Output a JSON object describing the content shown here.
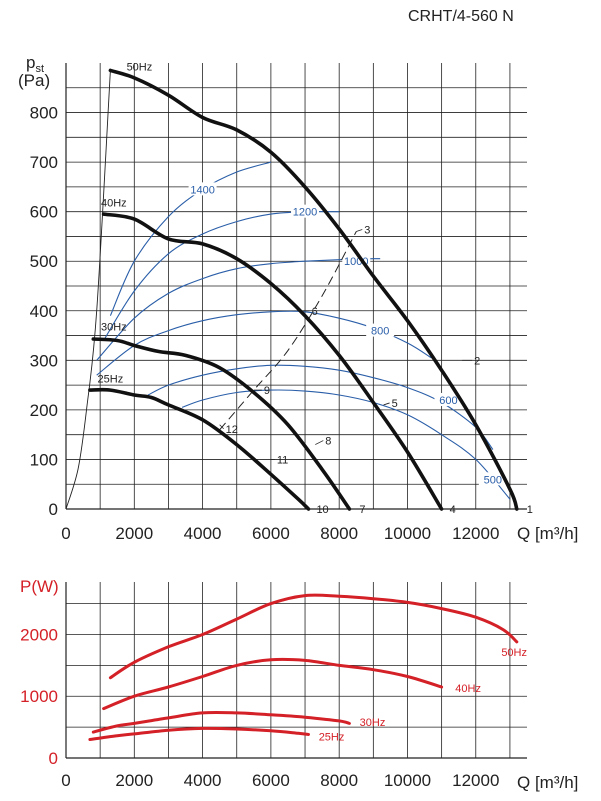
{
  "title": "CRHT/4-560 N",
  "chart_data": [
    {
      "type": "line",
      "name": "pressure-curves",
      "ylabel_main": "p",
      "ylabel_sub": "st",
      "ylabel_unit": "(Pa)",
      "xlabel": "Q [m³/h]",
      "xlim": [
        0,
        13500
      ],
      "ylim": [
        0,
        900
      ],
      "xticks": [
        0,
        2000,
        4000,
        6000,
        8000,
        10000,
        12000
      ],
      "yticks": [
        0,
        100,
        200,
        300,
        400,
        500,
        600,
        700,
        800
      ],
      "grid": true,
      "series": [
        {
          "name": "50Hz",
          "x": [
            1300,
            2000,
            3000,
            4000,
            5000,
            6000,
            7000,
            8000,
            9000,
            10000,
            11000,
            12000,
            13000,
            13200
          ],
          "y": [
            885,
            870,
            835,
            790,
            765,
            720,
            650,
            565,
            470,
            380,
            280,
            170,
            40,
            0
          ]
        },
        {
          "name": "40Hz",
          "x": [
            1100,
            2000,
            3000,
            4000,
            5000,
            6000,
            7000,
            8000,
            9000,
            10000,
            11000
          ],
          "y": [
            595,
            585,
            545,
            535,
            505,
            455,
            390,
            310,
            215,
            115,
            0
          ]
        },
        {
          "name": "30Hz",
          "x": [
            800,
            1500,
            2000,
            2700,
            3500,
            4500,
            5500,
            6500,
            7500,
            8300
          ],
          "y": [
            343,
            340,
            330,
            318,
            310,
            285,
            235,
            170,
            80,
            0
          ]
        },
        {
          "name": "25Hz",
          "x": [
            700,
            1300,
            2000,
            2500,
            3000,
            4000,
            5000,
            6000,
            6800,
            7100
          ],
          "y": [
            240,
            240,
            230,
            225,
            210,
            180,
            130,
            70,
            20,
            0
          ]
        }
      ],
      "speed_labels": [
        "50Hz",
        "40Hz",
        "30Hz",
        "25Hz"
      ],
      "iso_power_curves": [
        {
          "label": "1400",
          "x": [
            1300,
            2000,
            3000,
            4000,
            5000,
            6000
          ],
          "y": [
            390,
            500,
            590,
            645,
            680,
            700
          ]
        },
        {
          "label": "1200",
          "x": [
            1100,
            2000,
            3000,
            4000,
            5000,
            6000,
            7000,
            8000
          ],
          "y": [
            340,
            440,
            515,
            555,
            580,
            595,
            600,
            600
          ]
        },
        {
          "label": "1000",
          "x": [
            900,
            2000,
            3000,
            4000,
            5000,
            6000,
            7000,
            8000,
            9000,
            9200
          ],
          "y": [
            300,
            385,
            435,
            465,
            485,
            495,
            500,
            503,
            505,
            505
          ]
        },
        {
          "label": "800",
          "x": [
            900,
            2000,
            3000,
            4000,
            5000,
            6000,
            7000,
            8000,
            9000,
            10000,
            10700
          ],
          "y": [
            270,
            330,
            360,
            380,
            392,
            398,
            398,
            385,
            365,
            335,
            305
          ]
        },
        {
          "label": "600",
          "x": [
            2400,
            3000,
            4000,
            5000,
            6000,
            7000,
            8000,
            9000,
            10000,
            11000,
            12000,
            12500
          ],
          "y": [
            230,
            250,
            270,
            283,
            290,
            288,
            280,
            265,
            245,
            215,
            165,
            120
          ]
        },
        {
          "label": "500",
          "x": [
            3400,
            4000,
            5000,
            6000,
            7000,
            8000,
            9000,
            10000,
            11000,
            12000,
            13000
          ],
          "y": [
            205,
            220,
            235,
            240,
            238,
            230,
            215,
            190,
            150,
            100,
            20
          ]
        }
      ],
      "system_line": {
        "x": [
          4500,
          5500,
          6500,
          7500,
          8500
        ],
        "y": [
          160,
          240,
          320,
          430,
          560
        ]
      },
      "operating_points": [
        {
          "label": "1",
          "x": 13200,
          "y": 0
        },
        {
          "label": "2",
          "x": 11600,
          "y": 300
        },
        {
          "label": "3",
          "x": 8500,
          "y": 560
        },
        {
          "label": "4",
          "x": 11000,
          "y": 0
        },
        {
          "label": "5",
          "x": 9300,
          "y": 210
        },
        {
          "label": "6",
          "x": 6900,
          "y": 400
        },
        {
          "label": "7",
          "x": 8300,
          "y": 0
        },
        {
          "label": "8",
          "x": 7300,
          "y": 130
        },
        {
          "label": "9",
          "x": 5500,
          "y": 240
        },
        {
          "label": "10",
          "x": 7100,
          "y": 0
        },
        {
          "label": "11",
          "x": 6000,
          "y": 100
        },
        {
          "label": "12",
          "x": 4500,
          "y": 170
        }
      ]
    },
    {
      "type": "line",
      "name": "power-curves",
      "ylabel": "P(W)",
      "xlabel": "Q [m³/h]",
      "xlim": [
        0,
        13500
      ],
      "ylim": [
        0,
        2850
      ],
      "xticks": [
        0,
        2000,
        4000,
        6000,
        8000,
        10000,
        12000
      ],
      "yticks": [
        0,
        1000,
        2000
      ],
      "grid": true,
      "series": [
        {
          "name": "50Hz",
          "x": [
            1300,
            2000,
            3000,
            4000,
            5000,
            6000,
            7000,
            8000,
            9000,
            10000,
            11000,
            12000,
            12800,
            13200
          ],
          "y": [
            1300,
            1550,
            1800,
            2000,
            2250,
            2500,
            2630,
            2620,
            2580,
            2520,
            2420,
            2280,
            2080,
            1880
          ]
        },
        {
          "name": "40Hz",
          "x": [
            1100,
            2000,
            3000,
            4000,
            5000,
            6000,
            7000,
            8000,
            9000,
            10000,
            11000
          ],
          "y": [
            800,
            1000,
            1150,
            1320,
            1500,
            1590,
            1580,
            1500,
            1430,
            1320,
            1150
          ]
        },
        {
          "name": "30Hz",
          "x": [
            800,
            1500,
            2000,
            3000,
            4000,
            5000,
            6000,
            7000,
            8000,
            8300
          ],
          "y": [
            420,
            520,
            560,
            650,
            730,
            730,
            700,
            660,
            600,
            560
          ]
        },
        {
          "name": "25Hz",
          "x": [
            700,
            1500,
            2000,
            3000,
            4000,
            5000,
            6000,
            6800,
            7100
          ],
          "y": [
            300,
            360,
            390,
            450,
            480,
            470,
            440,
            400,
            380
          ]
        }
      ],
      "speed_labels": [
        "50Hz",
        "40Hz",
        "30Hz",
        "25Hz"
      ]
    }
  ]
}
